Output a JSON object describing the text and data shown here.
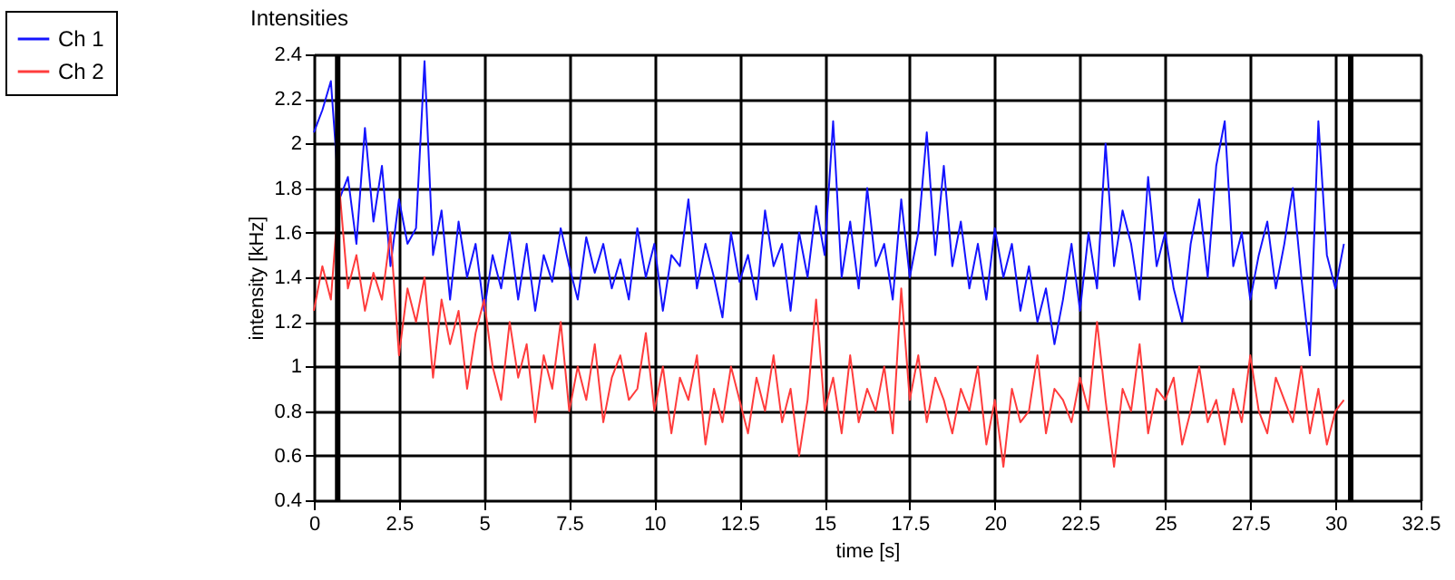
{
  "chart_data": {
    "type": "line",
    "title": "Intensities",
    "xlabel": "time [s]",
    "ylabel": "intensity [kHz]",
    "x": [
      0,
      0.25,
      0.5,
      0.75,
      1,
      1.25,
      1.5,
      1.75,
      2,
      2.25,
      2.5,
      2.75,
      3,
      3.25,
      3.5,
      3.75,
      4,
      4.25,
      4.5,
      4.75,
      5,
      5.25,
      5.5,
      5.75,
      6,
      6.25,
      6.5,
      6.75,
      7,
      7.25,
      7.5,
      7.75,
      8,
      8.25,
      8.5,
      8.75,
      9,
      9.25,
      9.5,
      9.75,
      10,
      10.25,
      10.5,
      10.75,
      11,
      11.25,
      11.5,
      11.75,
      12,
      12.25,
      12.5,
      12.75,
      13,
      13.25,
      13.5,
      13.75,
      14,
      14.25,
      14.5,
      14.75,
      15,
      15.25,
      15.5,
      15.75,
      16,
      16.25,
      16.5,
      16.75,
      17,
      17.25,
      17.5,
      17.75,
      18,
      18.25,
      18.5,
      18.75,
      19,
      19.25,
      19.5,
      19.75,
      20,
      20.25,
      20.5,
      20.75,
      21,
      21.25,
      21.5,
      21.75,
      22,
      22.25,
      22.5,
      22.75,
      23,
      23.25,
      23.5,
      23.75,
      24,
      24.25,
      24.5,
      24.75,
      25,
      25.25,
      25.5,
      25.75,
      26,
      26.25,
      26.5,
      26.75,
      27,
      27.25,
      27.5,
      27.75,
      28,
      28.25,
      28.5,
      28.75,
      29,
      29.25,
      29.5,
      29.75,
      30,
      30.25
    ],
    "series": [
      {
        "name": "Ch 1",
        "color": "#1414ff",
        "values": [
          2.05,
          2.15,
          2.28,
          1.75,
          1.85,
          1.55,
          2.07,
          1.65,
          1.9,
          1.45,
          1.75,
          1.55,
          1.62,
          2.37,
          1.5,
          1.7,
          1.3,
          1.65,
          1.4,
          1.55,
          1.25,
          1.5,
          1.35,
          1.6,
          1.3,
          1.55,
          1.25,
          1.5,
          1.38,
          1.62,
          1.45,
          1.3,
          1.58,
          1.42,
          1.55,
          1.35,
          1.48,
          1.3,
          1.62,
          1.4,
          1.55,
          1.25,
          1.5,
          1.45,
          1.75,
          1.35,
          1.55,
          1.4,
          1.22,
          1.6,
          1.38,
          1.5,
          1.3,
          1.7,
          1.45,
          1.55,
          1.25,
          1.6,
          1.4,
          1.72,
          1.5,
          2.1,
          1.4,
          1.65,
          1.35,
          1.8,
          1.45,
          1.55,
          1.3,
          1.75,
          1.4,
          1.6,
          2.05,
          1.5,
          1.9,
          1.45,
          1.65,
          1.35,
          1.55,
          1.3,
          1.62,
          1.4,
          1.55,
          1.25,
          1.45,
          1.2,
          1.35,
          1.1,
          1.3,
          1.55,
          1.25,
          1.6,
          1.35,
          2.0,
          1.45,
          1.7,
          1.55,
          1.3,
          1.85,
          1.45,
          1.6,
          1.35,
          1.2,
          1.55,
          1.75,
          1.4,
          1.9,
          2.1,
          1.45,
          1.6,
          1.3,
          1.5,
          1.65,
          1.35,
          1.55,
          1.8,
          1.4,
          1.05,
          2.1,
          1.5,
          1.35,
          1.55
        ]
      },
      {
        "name": "Ch 2",
        "color": "#ff3c3c",
        "values": [
          1.25,
          1.45,
          1.3,
          1.8,
          1.35,
          1.5,
          1.25,
          1.42,
          1.3,
          1.6,
          1.05,
          1.35,
          1.2,
          1.4,
          0.95,
          1.3,
          1.1,
          1.25,
          0.9,
          1.15,
          1.3,
          1.0,
          0.85,
          1.2,
          0.95,
          1.1,
          0.75,
          1.05,
          0.9,
          1.2,
          0.8,
          1.0,
          0.85,
          1.1,
          0.75,
          0.95,
          1.05,
          0.85,
          0.9,
          1.15,
          0.8,
          1.0,
          0.7,
          0.95,
          0.85,
          1.05,
          0.65,
          0.9,
          0.75,
          1.0,
          0.85,
          0.7,
          0.95,
          0.8,
          1.05,
          0.75,
          0.9,
          0.6,
          0.85,
          1.3,
          0.8,
          0.95,
          0.7,
          1.05,
          0.75,
          0.9,
          0.8,
          1.0,
          0.7,
          1.35,
          0.85,
          1.05,
          0.75,
          0.95,
          0.85,
          0.7,
          0.9,
          0.8,
          1.0,
          0.65,
          0.85,
          0.55,
          0.9,
          0.75,
          0.8,
          1.05,
          0.7,
          0.9,
          0.85,
          0.75,
          0.95,
          0.8,
          1.2,
          0.85,
          0.55,
          0.9,
          0.8,
          1.1,
          0.7,
          0.9,
          0.85,
          0.95,
          0.65,
          0.8,
          1.0,
          0.75,
          0.85,
          0.65,
          0.9,
          0.75,
          1.05,
          0.8,
          0.7,
          0.95,
          0.85,
          0.75,
          1.0,
          0.7,
          0.9,
          0.65,
          0.8,
          0.85
        ]
      }
    ],
    "xlim": [
      0,
      32.5
    ],
    "xticks": [
      0,
      2.5,
      5,
      7.5,
      10,
      12.5,
      15,
      17.5,
      20,
      22.5,
      25,
      27.5,
      30,
      32.5
    ],
    "ylim": [
      0.4,
      2.4
    ],
    "yticks": [
      0.4,
      0.6,
      0.8,
      1,
      1.2,
      1.4,
      1.6,
      1.8,
      2,
      2.2,
      2.4
    ],
    "ref_lines": [
      {
        "axis": "x",
        "value": 0.7,
        "color": "#000000"
      },
      {
        "axis": "x",
        "value": 30.45,
        "color": "#000000"
      }
    ],
    "grid": true,
    "legend": "top left",
    "marker": "none",
    "line_style": "solid"
  }
}
